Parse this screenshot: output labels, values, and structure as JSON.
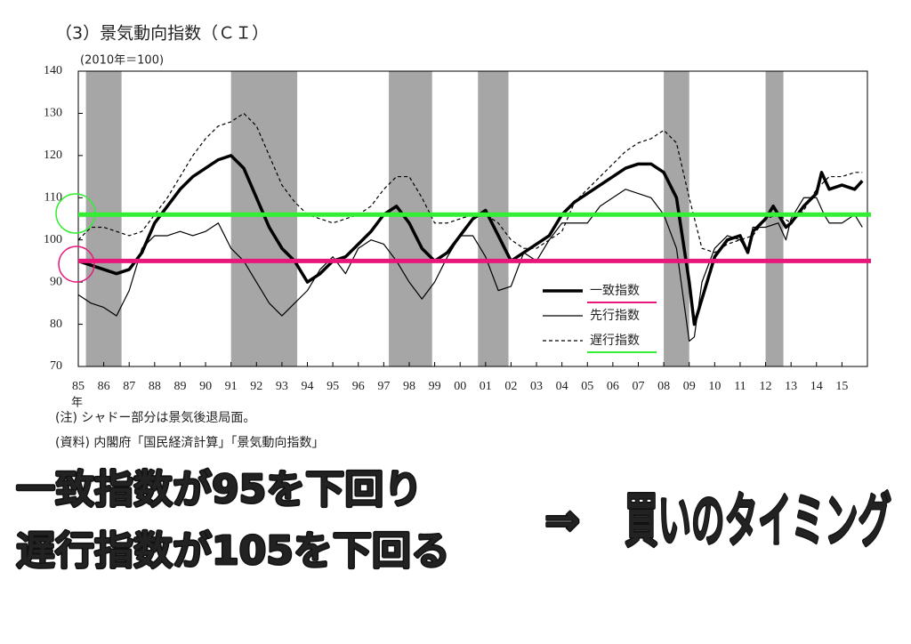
{
  "chart_data": {
    "type": "line",
    "title": "（3）景気動向指数（ＣＩ）",
    "subtitle": "(2010年＝100)",
    "x_unit": "年",
    "notes": [
      "(注) シャドー部分は景気後退局面。",
      "(資料) 内閣府「国民経済計算」「景気動向指数」"
    ],
    "xlim": [
      1985,
      2016
    ],
    "ylim": [
      70,
      140
    ],
    "yticks": [
      70,
      80,
      90,
      100,
      110,
      120,
      130,
      140
    ],
    "xticks": [
      {
        "value": 1985,
        "label": "85"
      },
      {
        "value": 1986,
        "label": "86"
      },
      {
        "value": 1987,
        "label": "87"
      },
      {
        "value": 1988,
        "label": "88"
      },
      {
        "value": 1989,
        "label": "89"
      },
      {
        "value": 1990,
        "label": "90"
      },
      {
        "value": 1991,
        "label": "91"
      },
      {
        "value": 1992,
        "label": "92"
      },
      {
        "value": 1993,
        "label": "93"
      },
      {
        "value": 1994,
        "label": "94"
      },
      {
        "value": 1995,
        "label": "95"
      },
      {
        "value": 1996,
        "label": "96"
      },
      {
        "value": 1997,
        "label": "97"
      },
      {
        "value": 1998,
        "label": "98"
      },
      {
        "value": 1999,
        "label": "99"
      },
      {
        "value": 2000,
        "label": "00"
      },
      {
        "value": 2001,
        "label": "01"
      },
      {
        "value": 2002,
        "label": "02"
      },
      {
        "value": 2003,
        "label": "03"
      },
      {
        "value": 2004,
        "label": "04"
      },
      {
        "value": 2005,
        "label": "05"
      },
      {
        "value": 2006,
        "label": "06"
      },
      {
        "value": 2007,
        "label": "07"
      },
      {
        "value": 2008,
        "label": "08"
      },
      {
        "value": 2009,
        "label": "09"
      },
      {
        "value": 2010,
        "label": "10"
      },
      {
        "value": 2011,
        "label": "11"
      },
      {
        "value": 2012,
        "label": "12"
      },
      {
        "value": 2013,
        "label": "13"
      },
      {
        "value": 2014,
        "label": "14"
      },
      {
        "value": 2015,
        "label": "15"
      }
    ],
    "shaded_periods": [
      [
        1985.3,
        1986.7
      ],
      [
        1991.0,
        1993.6
      ],
      [
        1997.2,
        1998.9
      ],
      [
        2000.7,
        2001.9
      ],
      [
        2008.0,
        2009.0
      ],
      [
        2012.0,
        2012.7
      ]
    ],
    "shade_color": "#a6a6a6",
    "legend": "lower right",
    "series": [
      {
        "name": "一致指数",
        "color": "#000000",
        "width": 3.5,
        "style": "solid",
        "x": [
          1985,
          1985.5,
          1986,
          1986.5,
          1987,
          1987.5,
          1988,
          1988.5,
          1989,
          1989.5,
          1990,
          1990.5,
          1991,
          1991.5,
          1992,
          1992.5,
          1993,
          1993.5,
          1994,
          1994.5,
          1995,
          1995.5,
          1996,
          1996.5,
          1997,
          1997.5,
          1998,
          1998.5,
          1999,
          1999.5,
          2000,
          2000.5,
          2001,
          2001.5,
          2002,
          2002.5,
          2003,
          2003.5,
          2004,
          2004.5,
          2005,
          2005.5,
          2006,
          2006.5,
          2007,
          2007.5,
          2008,
          2008.5,
          2009,
          2009.2,
          2009.5,
          2010,
          2010.5,
          2011,
          2011.3,
          2011.5,
          2012,
          2012.3,
          2012.8,
          2013,
          2013.5,
          2014,
          2014.2,
          2014.5,
          2015,
          2015.5,
          2015.8
        ],
        "values": [
          95,
          94,
          93,
          92,
          93,
          97,
          104,
          108,
          112,
          115,
          117,
          119,
          120,
          117,
          110,
          103,
          98,
          95,
          90,
          92,
          95,
          96,
          99,
          102,
          106,
          108,
          104,
          98,
          95,
          97,
          101,
          105,
          107,
          101,
          95,
          97,
          99,
          101,
          106,
          109,
          111,
          113,
          115,
          117,
          118,
          118,
          116,
          110,
          90,
          80,
          86,
          96,
          100,
          101,
          97,
          102,
          105,
          108,
          103,
          104,
          108,
          111,
          116,
          112,
          113,
          112,
          114
        ]
      },
      {
        "name": "先行指数",
        "color": "#000000",
        "width": 1.2,
        "style": "solid",
        "x": [
          1985,
          1985.5,
          1986,
          1986.5,
          1987,
          1987.5,
          1988,
          1988.5,
          1989,
          1989.5,
          1990,
          1990.5,
          1991,
          1991.5,
          1992,
          1992.5,
          1993,
          1993.5,
          1994,
          1994.5,
          1995,
          1995.5,
          1996,
          1996.5,
          1997,
          1997.5,
          1998,
          1998.5,
          1999,
          1999.5,
          2000,
          2000.5,
          2001,
          2001.5,
          2002,
          2002.5,
          2003,
          2003.5,
          2004,
          2004.5,
          2005,
          2005.5,
          2006,
          2006.5,
          2007,
          2007.5,
          2008,
          2008.5,
          2009,
          2009.2,
          2009.5,
          2010,
          2010.5,
          2011,
          2011.3,
          2011.5,
          2012,
          2012.5,
          2012.8,
          2013,
          2013.5,
          2014,
          2014.3,
          2014.5,
          2015,
          2015.5,
          2015.8
        ],
        "values": [
          87,
          85,
          84,
          82,
          88,
          98,
          101,
          101,
          102,
          101,
          102,
          104,
          98,
          95,
          90,
          85,
          82,
          85,
          88,
          93,
          96,
          92,
          98,
          100,
          99,
          95,
          90,
          86,
          90,
          96,
          101,
          101,
          96,
          88,
          89,
          97,
          95,
          100,
          104,
          104,
          104,
          108,
          110,
          112,
          111,
          110,
          106,
          98,
          76,
          77,
          90,
          98,
          101,
          100,
          97,
          103,
          103,
          104,
          100,
          105,
          110,
          110,
          106,
          104,
          104,
          106,
          103
        ]
      },
      {
        "name": "遅行指数",
        "color": "#000000",
        "width": 1.2,
        "style": "dashed",
        "x": [
          1985,
          1985.5,
          1986,
          1986.5,
          1987,
          1987.5,
          1988,
          1988.5,
          1989,
          1989.5,
          1990,
          1990.5,
          1991,
          1991.5,
          1992,
          1992.5,
          1993,
          1993.5,
          1994,
          1994.5,
          1995,
          1995.5,
          1996,
          1996.5,
          1997,
          1997.5,
          1998,
          1998.5,
          1999,
          1999.5,
          2000,
          2000.5,
          2001,
          2001.5,
          2002,
          2002.5,
          2003,
          2003.5,
          2004,
          2004.5,
          2005,
          2005.5,
          2006,
          2006.5,
          2007,
          2007.5,
          2008,
          2008.5,
          2009,
          2009.5,
          2010,
          2010.5,
          2011,
          2011.5,
          2012,
          2012.5,
          2013,
          2013.5,
          2014,
          2014.5,
          2015,
          2015.5,
          2015.8
        ],
        "values": [
          100,
          103,
          103,
          102,
          101,
          102,
          106,
          110,
          115,
          120,
          124,
          127,
          128,
          130,
          127,
          120,
          113,
          109,
          106,
          105,
          104,
          105,
          106,
          108,
          112,
          115,
          115,
          110,
          104,
          104,
          105,
          106,
          106,
          104,
          100,
          98,
          98,
          100,
          102,
          109,
          112,
          115,
          118,
          121,
          123,
          124,
          126,
          123,
          110,
          98,
          97,
          99,
          100,
          101,
          105,
          106,
          104,
          107,
          112,
          115,
          115,
          116,
          116
        ]
      }
    ],
    "reference_lines": [
      {
        "value": 106,
        "color": "#33ee33"
      },
      {
        "value": 95,
        "color": "#e8177a"
      }
    ],
    "annotations": [
      {
        "text": "一致指数が95を下回り",
        "color": "#e8177a"
      },
      {
        "text": "遅行指数が105を下回る",
        "color": "#33ee33"
      },
      {
        "text": "⇒",
        "color": "#ff1a1a"
      },
      {
        "text": "買いのタイミング",
        "color": "#ff1a1a"
      }
    ]
  }
}
